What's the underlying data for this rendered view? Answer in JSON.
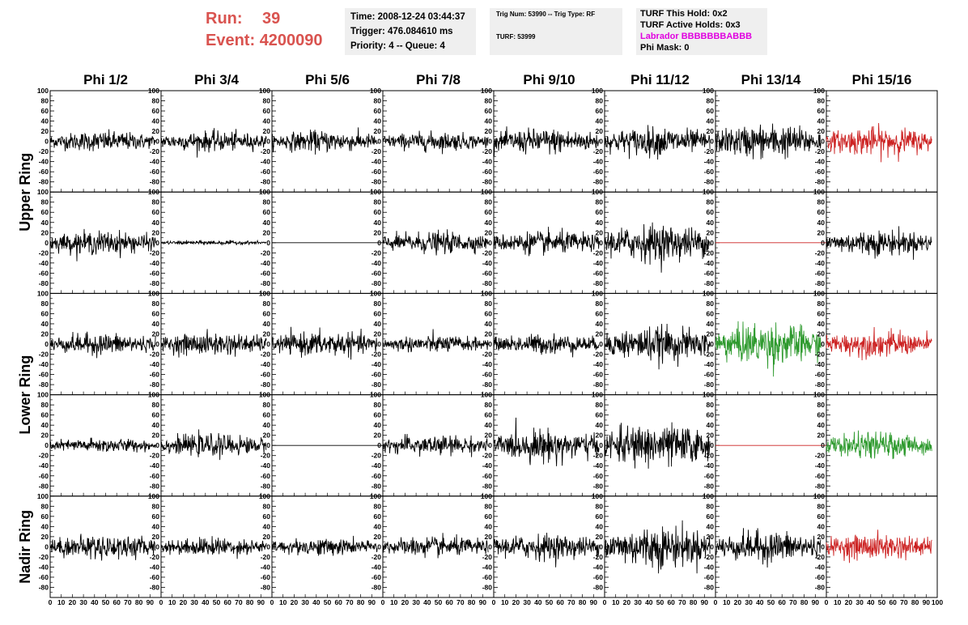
{
  "header": {
    "run_label": "Run:",
    "run_value": "39",
    "event_label": "Event:",
    "event_value": "4200090",
    "colors": {
      "run": "#d9534f",
      "labrador": "#e000e0"
    }
  },
  "time_box": {
    "time": "Time: 2008-12-24 03:44:37",
    "trigger": "Trigger: 476.084610 ms",
    "priority": "Priority: 4 -- Queue: 4"
  },
  "trig_box": {
    "trig": "Trig Num: 53990 -- Trig Type: RF",
    "turf": "TURF: 53999"
  },
  "turf_box": {
    "this_hold": "TURF This Hold: 0x2",
    "active_holds": "TURF Active Holds: 0x3",
    "labrador": "Labrador BBBBBBBABBB",
    "phi_mask": "Phi Mask: 0"
  },
  "chart_data": {
    "type": "line",
    "columns": [
      "Phi 1/2",
      "Phi 3/4",
      "Phi 5/6",
      "Phi 7/8",
      "Phi 9/10",
      "Phi 11/12",
      "Phi 13/14",
      "Phi 15/16"
    ],
    "row_labels": [
      {
        "text": "Upper Ring",
        "rows": [
          0,
          1
        ]
      },
      {
        "text": "Lower Ring",
        "rows": [
          2,
          3
        ]
      },
      {
        "text": "Nadir Ring",
        "rows": [
          4,
          4
        ]
      }
    ],
    "ylim": [
      -100,
      100
    ],
    "xlim": [
      0,
      100
    ],
    "yticks": [
      -80,
      -60,
      -40,
      -20,
      0,
      20,
      40,
      60,
      80,
      100
    ],
    "xticks": [
      0,
      10,
      20,
      30,
      40,
      50,
      60,
      70,
      80,
      90
    ],
    "last_xtick": 100,
    "trace_x_range": [
      0,
      95
    ],
    "colors": {
      "black": "#000000",
      "red": "#cc2222",
      "green": "#2e9a2e"
    },
    "panels": [
      [
        {
          "c": "black",
          "a": 14
        },
        {
          "c": "black",
          "a": 14
        },
        {
          "c": "black",
          "a": 15
        },
        {
          "c": "black",
          "a": 13
        },
        {
          "c": "black",
          "a": 18
        },
        {
          "c": "black",
          "a": 20
        },
        {
          "c": "black",
          "a": 24
        },
        {
          "c": "red",
          "a": 20
        }
      ],
      [
        {
          "c": "black",
          "a": 16
        },
        {
          "c": "black",
          "a": 3
        },
        {
          "c": "black",
          "a": 0
        },
        {
          "c": "black",
          "a": 15
        },
        {
          "c": "black",
          "a": 16
        },
        {
          "c": "black",
          "a": 26
        },
        {
          "c": "red",
          "a": 0
        },
        {
          "c": "black",
          "a": 18
        }
      ],
      [
        {
          "c": "black",
          "a": 15
        },
        {
          "c": "black",
          "a": 16
        },
        {
          "c": "black",
          "a": 17
        },
        {
          "c": "black",
          "a": 12
        },
        {
          "c": "black",
          "a": 14
        },
        {
          "c": "black",
          "a": 24
        },
        {
          "c": "green",
          "a": 30
        },
        {
          "c": "red",
          "a": 18
        }
      ],
      [
        {
          "c": "black",
          "a": 10
        },
        {
          "c": "black",
          "a": 15
        },
        {
          "c": "black",
          "a": 0
        },
        {
          "c": "black",
          "a": 14
        },
        {
          "c": "black",
          "a": 22
        },
        {
          "c": "black",
          "a": 30
        },
        {
          "c": "red",
          "a": 0
        },
        {
          "c": "green",
          "a": 18
        }
      ],
      [
        {
          "c": "black",
          "a": 17
        },
        {
          "c": "black",
          "a": 13
        },
        {
          "c": "black",
          "a": 12
        },
        {
          "c": "black",
          "a": 14
        },
        {
          "c": "black",
          "a": 18
        },
        {
          "c": "black",
          "a": 30
        },
        {
          "c": "black",
          "a": 22
        },
        {
          "c": "red",
          "a": 18
        }
      ]
    ]
  }
}
